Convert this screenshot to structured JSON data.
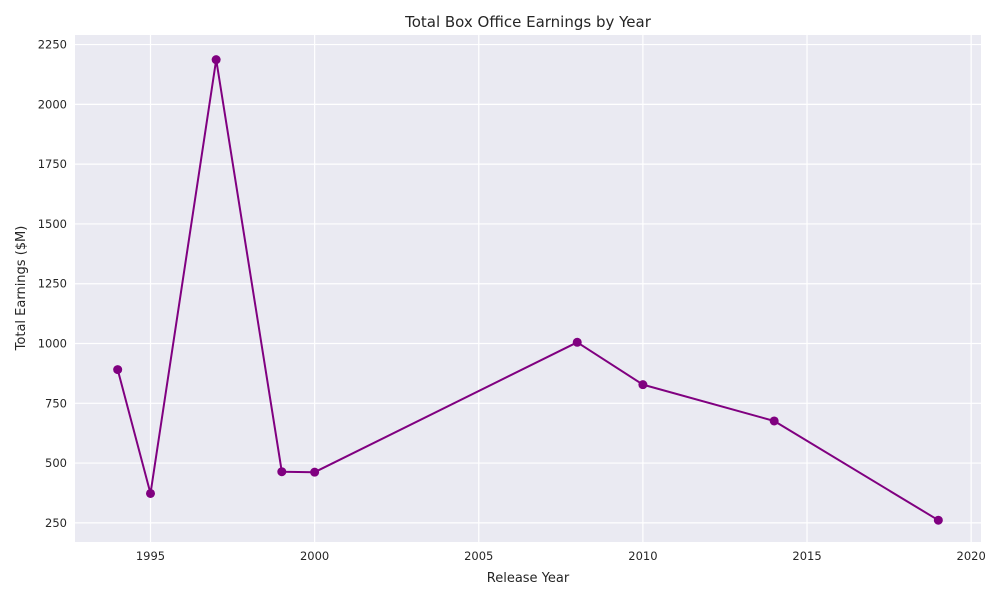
{
  "chart_data": {
    "type": "line",
    "title": "Total Box Office Earnings by Year",
    "xlabel": "Release Year",
    "ylabel": "Total Earnings ($M)",
    "xlim": [
      1992.7,
      2020.3
    ],
    "ylim": [
      170,
      2290
    ],
    "xticks": [
      1995,
      2000,
      2005,
      2010,
      2015,
      2020
    ],
    "yticks": [
      250,
      500,
      750,
      1000,
      1250,
      1500,
      1750,
      2000,
      2250
    ],
    "grid": true,
    "colors": {
      "line": "#800080",
      "plot_bg": "#eaeaf2",
      "grid": "#ffffff"
    },
    "series": [
      {
        "x": [
          1994,
          1995,
          1997,
          1999,
          2000,
          2008,
          2010,
          2014,
          2019
        ],
        "y": [
          891,
          373,
          2187,
          464,
          462,
          1005,
          828,
          676,
          261
        ]
      }
    ]
  }
}
